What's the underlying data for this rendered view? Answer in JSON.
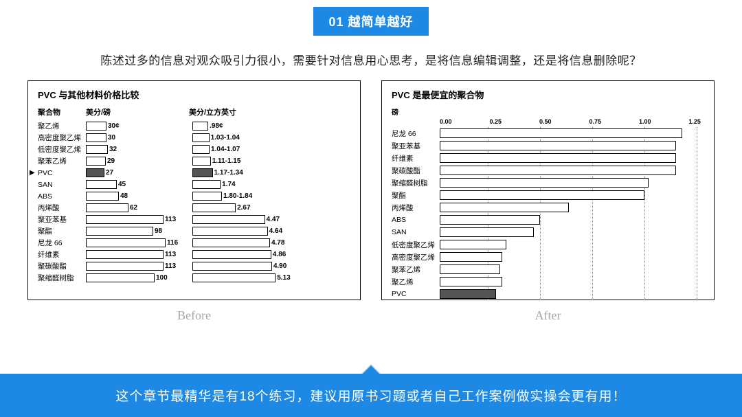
{
  "header": {
    "badge": "01  越简单越好"
  },
  "question": "陈述过多的信息对观众吸引力很小，需要针对信息用心思考，是将信息编辑调整，还是将信息删除呢？",
  "before": {
    "title": "PVC 与其他材料价格比较",
    "col_polymer": "聚合物",
    "col_lb": "美分/磅",
    "col_in3": "美分/立方英寸",
    "max_lb": 120,
    "max_in3": 5.5,
    "rows": [
      {
        "label": "聚乙烯",
        "lb": 30,
        "lb_txt": "30¢",
        "in3": 0.98,
        "in3_txt": ".98¢"
      },
      {
        "label": "高密度聚乙烯",
        "lb": 30,
        "lb_txt": "30",
        "in3": 1.04,
        "in3_txt": "1.03-1.04"
      },
      {
        "label": "低密度聚乙烯",
        "lb": 32,
        "lb_txt": "32",
        "in3": 1.06,
        "in3_txt": "1.04-1.07"
      },
      {
        "label": "聚苯乙烯",
        "lb": 29,
        "lb_txt": "29",
        "in3": 1.13,
        "in3_txt": "1.11-1.15"
      },
      {
        "label": "PVC",
        "lb": 27,
        "lb_txt": "27",
        "in3": 1.25,
        "in3_txt": "1.17-1.34",
        "hl": true,
        "pointer": "▶"
      },
      {
        "label": "SAN",
        "lb": 45,
        "lb_txt": "45",
        "in3": 1.74,
        "in3_txt": "1.74"
      },
      {
        "label": "ABS",
        "lb": 48,
        "lb_txt": "48",
        "in3": 1.82,
        "in3_txt": "1.80-1.84"
      },
      {
        "label": "丙烯酸",
        "lb": 62,
        "lb_txt": "62",
        "in3": 2.67,
        "in3_txt": "2.67"
      },
      {
        "label": "聚亚苯基",
        "lb": 113,
        "lb_txt": "113",
        "in3": 4.47,
        "in3_txt": "4.47"
      },
      {
        "label": "聚酯",
        "lb": 98,
        "lb_txt": "98",
        "in3": 4.64,
        "in3_txt": "4.64"
      },
      {
        "label": "尼龙 66",
        "lb": 116,
        "lb_txt": "116",
        "in3": 4.78,
        "in3_txt": "4.78"
      },
      {
        "label": "纤维素",
        "lb": 113,
        "lb_txt": "113",
        "in3": 4.86,
        "in3_txt": "4.86"
      },
      {
        "label": "聚碳酸酯",
        "lb": 113,
        "lb_txt": "113",
        "in3": 4.9,
        "in3_txt": "4.90"
      },
      {
        "label": "聚缩醛树脂",
        "lb": 100,
        "lb_txt": "100",
        "in3": 5.13,
        "in3_txt": "5.13"
      }
    ]
  },
  "after": {
    "title": "PVC 是最便宜的聚合物",
    "unit": "磅",
    "ticks": [
      "0.00",
      "0.25",
      "0.50",
      "0.75",
      "1.00",
      "1.25"
    ],
    "max": 1.25,
    "rows": [
      {
        "label": "尼龙 66",
        "v": 1.16
      },
      {
        "label": "聚亚苯基",
        "v": 1.13
      },
      {
        "label": "纤维素",
        "v": 1.13
      },
      {
        "label": "聚碳酸酯",
        "v": 1.13
      },
      {
        "label": "聚缩醛树脂",
        "v": 1.0
      },
      {
        "label": "聚酯",
        "v": 0.98
      },
      {
        "label": "丙烯酸",
        "v": 0.62
      },
      {
        "label": "ABS",
        "v": 0.48
      },
      {
        "label": "SAN",
        "v": 0.45
      },
      {
        "label": "低密度聚乙烯",
        "v": 0.32
      },
      {
        "label": "高密度聚乙烯",
        "v": 0.3
      },
      {
        "label": "聚苯乙烯",
        "v": 0.29
      },
      {
        "label": "聚乙烯",
        "v": 0.3
      },
      {
        "label": "PVC",
        "v": 0.27,
        "hl": true
      }
    ]
  },
  "captions": {
    "before": "Before",
    "after": "After"
  },
  "footer": "这个章节最精华是有18个练习，建议用原书习题或者自己工作案例做实操会更有用！",
  "colors": {
    "brand": "#1e88e5",
    "caption": "#a8a8a8",
    "highlight_fill": "#555555",
    "border": "#000000"
  }
}
